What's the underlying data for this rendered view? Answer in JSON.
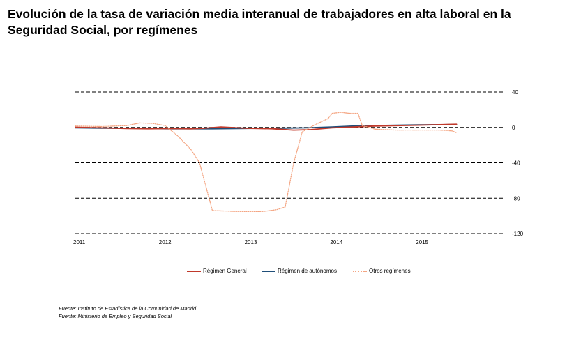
{
  "title": "Evolución de la tasa de variación media interanual de trabajadores en alta laboral en la Seguridad Social, por  regímenes",
  "sources": [
    "Fuente: Instituto de Estadística de la Comunidad de Madrid",
    "Fuente: Ministerio de Empleo y Seguridad Social"
  ],
  "colors": {
    "general": "#c0392b",
    "autonomos": "#1f4e79",
    "otros": "#f4a582",
    "gridline": "#000000"
  },
  "chart_data": {
    "type": "line",
    "title": "Evolución de la tasa de variación media interanual de trabajadores en alta laboral en la Seguridad Social, por  regímenes",
    "xlabel": "",
    "ylabel": "",
    "ylim": [
      -120,
      40
    ],
    "xlim": [
      2011.0,
      2016.0
    ],
    "y_ticks": [
      "40",
      "0",
      "-40",
      "-80",
      "-120"
    ],
    "y_tick_values": [
      40,
      0,
      -40,
      -80,
      -120
    ],
    "y_axis_position": "right",
    "x_ticks": [
      "2011",
      "2012",
      "2013",
      "2014",
      "2015"
    ],
    "x_tick_values": [
      2011,
      2012,
      2013,
      2014,
      2015
    ],
    "grid": "horizontal dashed",
    "legend_position": "bottom",
    "series": [
      {
        "name": "Régimen General",
        "color": "#c0392b",
        "style": "solid",
        "x": [
          2011.0,
          2011.3,
          2011.6,
          2011.85,
          2012.1,
          2012.35,
          2012.5,
          2012.7,
          2013.0,
          2013.3,
          2013.55,
          2013.75,
          2014.0,
          2014.25,
          2014.5,
          2014.75,
          2015.0,
          2015.25,
          2015.45
        ],
        "y": [
          0.2,
          -0.5,
          -1.2,
          -1.5,
          -1.2,
          -1.5,
          -1.0,
          0.5,
          -1.0,
          -1.5,
          -3.0,
          -2.5,
          -0.5,
          0.5,
          1.5,
          2.0,
          2.5,
          3.0,
          3.5
        ]
      },
      {
        "name": "Régimen de autónomos",
        "color": "#1f4e79",
        "style": "solid",
        "x": [
          2011.0,
          2011.3,
          2011.6,
          2011.85,
          2012.1,
          2012.35,
          2012.6,
          2012.9,
          2013.2,
          2013.45,
          2013.7,
          2014.0,
          2014.25,
          2014.5,
          2014.75,
          2015.0,
          2015.25,
          2015.45
        ],
        "y": [
          -0.5,
          -0.8,
          -1.0,
          -1.2,
          -1.5,
          -1.5,
          -1.5,
          -1.3,
          -1.0,
          -0.8,
          -0.5,
          0.5,
          1.5,
          2.0,
          2.5,
          2.8,
          3.0,
          3.2
        ]
      },
      {
        "name": "Otros regímenes",
        "color": "#f4a582",
        "style": "dotted",
        "x": [
          2011.0,
          2011.3,
          2011.6,
          2011.75,
          2011.9,
          2012.05,
          2012.2,
          2012.35,
          2012.45,
          2012.6,
          2012.9,
          2013.2,
          2013.35,
          2013.45,
          2013.55,
          2013.65,
          2013.8,
          2013.95,
          2014.0,
          2014.1,
          2014.2,
          2014.3,
          2014.35,
          2014.5,
          2014.75,
          2015.0,
          2015.25,
          2015.4,
          2015.45
        ],
        "y": [
          1.5,
          1.0,
          2.0,
          5.0,
          4.5,
          2.0,
          -10.0,
          -25.0,
          -40.0,
          -94.0,
          -95.0,
          -95.0,
          -93.0,
          -90.0,
          -40.0,
          -5.0,
          3.0,
          10.0,
          16.0,
          17.0,
          16.0,
          16.0,
          2.0,
          -2.0,
          -3.0,
          -3.0,
          -3.0,
          -4.0,
          -6.0
        ]
      }
    ]
  }
}
